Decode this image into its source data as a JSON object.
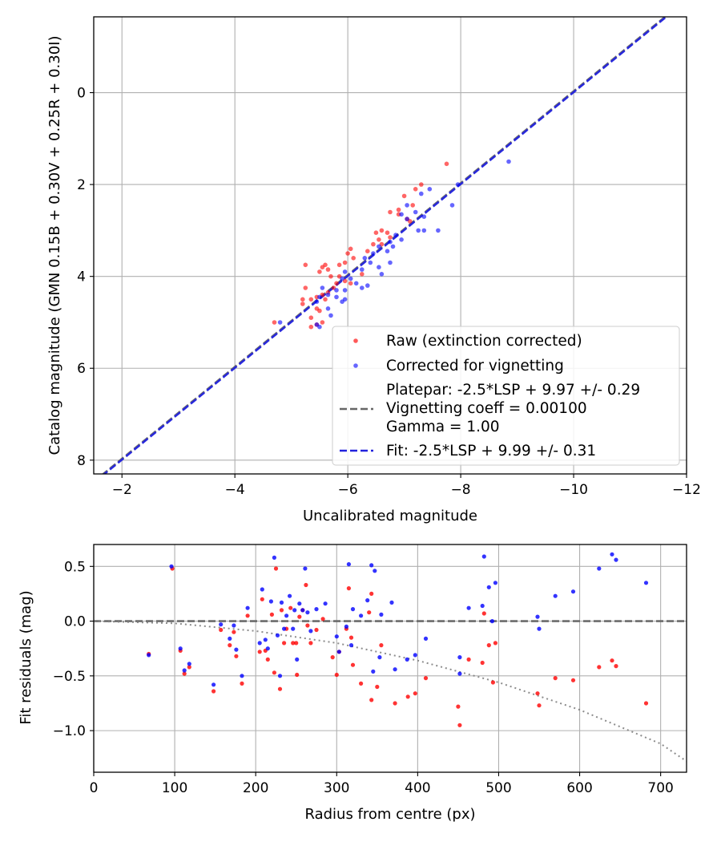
{
  "colors": {
    "raw": "#ff0000",
    "corrected": "#0000ff",
    "fit": "#2222dd",
    "platepar": "#666666",
    "grid": "#b0b0b0",
    "vignetting_curve": "#808080"
  },
  "chart_data": [
    {
      "type": "scatter",
      "xlabel": "Uncalibrated magnitude",
      "ylabel": "Catalog magnitude (GMN 0.15B + 0.30V + 0.25R + 0.30I)",
      "xlim": [
        -1.5,
        -12.0
      ],
      "ylim": [
        8.3,
        -1.65
      ],
      "x_inverted": true,
      "y_inverted": true,
      "grid": true,
      "xticks": [
        -2,
        -4,
        -6,
        -8,
        -10,
        -12
      ],
      "xtick_labels": [
        "−2",
        "−4",
        "−6",
        "−8",
        "−10",
        "−12"
      ],
      "yticks": [
        0,
        2,
        4,
        6,
        8
      ],
      "ytick_labels": [
        "0",
        "2",
        "4",
        "6",
        "8"
      ],
      "legend_position": "lower-right",
      "legend": [
        {
          "label": "Raw (extinction corrected)",
          "marker": "dot",
          "color": "#ff0000"
        },
        {
          "label": "Corrected for vignetting",
          "marker": "dot",
          "color": "#0000ff"
        },
        {
          "label": "Platepar: -2.5*LSP + 9.97 +/- 0.29",
          "marker": "none"
        },
        {
          "label": "Vignetting coeff = 0.00100",
          "marker": "dashed-line",
          "color": "#666666"
        },
        {
          "label": "Gamma = 1.00",
          "marker": "none"
        },
        {
          "label": "Fit: -2.5*LSP + 9.99 +/- 0.31",
          "marker": "dashed-line",
          "color": "#2222dd"
        }
      ],
      "lines": [
        {
          "name": "Platepar: -2.5*LSP + 9.97 +/- 0.29",
          "style": "dashed",
          "color": "#666666",
          "x": [
            -1.5,
            -12.0
          ],
          "y": [
            8.47,
            -2.03
          ]
        },
        {
          "name": "Fit: -2.5*LSP + 9.99 +/- 0.31",
          "style": "dashed",
          "color": "#2222dd",
          "x": [
            -1.5,
            -12.0
          ],
          "y": [
            8.49,
            -2.01
          ]
        }
      ],
      "series": [
        {
          "name": "Raw (extinction corrected)",
          "color": "#ff0000",
          "points": [
            [
              -7.75,
              1.55
            ],
            [
              -7.2,
              2.1
            ],
            [
              -7.3,
              2.0
            ],
            [
              -7.0,
              2.25
            ],
            [
              -7.15,
              2.45
            ],
            [
              -6.9,
              2.55
            ],
            [
              -6.75,
              2.6
            ],
            [
              -7.05,
              2.75
            ],
            [
              -7.1,
              2.8
            ],
            [
              -6.6,
              3.0
            ],
            [
              -6.7,
              3.05
            ],
            [
              -6.5,
              3.05
            ],
            [
              -6.75,
              3.15
            ],
            [
              -6.55,
              3.2
            ],
            [
              -6.6,
              3.3
            ],
            [
              -6.45,
              3.3
            ],
            [
              -6.35,
              3.45
            ],
            [
              -6.05,
              3.4
            ],
            [
              -6.0,
              3.5
            ],
            [
              -6.1,
              3.6
            ],
            [
              -5.95,
              3.7
            ],
            [
              -5.85,
              3.75
            ],
            [
              -5.6,
              3.75
            ],
            [
              -5.55,
              3.8
            ],
            [
              -5.25,
              3.75
            ],
            [
              -5.65,
              3.85
            ],
            [
              -5.5,
              3.9
            ],
            [
              -5.7,
              4.0
            ],
            [
              -5.85,
              4.0
            ],
            [
              -5.95,
              4.1
            ],
            [
              -6.05,
              4.15
            ],
            [
              -5.8,
              4.15
            ],
            [
              -5.75,
              4.25
            ],
            [
              -5.25,
              4.25
            ],
            [
              -5.55,
              4.4
            ],
            [
              -5.45,
              4.45
            ],
            [
              -5.6,
              4.5
            ],
            [
              -5.35,
              4.5
            ],
            [
              -5.2,
              4.5
            ],
            [
              -5.2,
              4.6
            ],
            [
              -5.45,
              4.7
            ],
            [
              -5.5,
              4.75
            ],
            [
              -5.35,
              4.9
            ],
            [
              -5.55,
              5.0
            ],
            [
              -5.35,
              5.1
            ],
            [
              -5.45,
              5.05
            ],
            [
              -4.7,
              5.0
            ],
            [
              -5.65,
              4.35
            ],
            [
              -6.25,
              3.95
            ],
            [
              -6.9,
              2.65
            ]
          ]
        },
        {
          "name": "Corrected for vignetting",
          "color": "#0000ff",
          "points": [
            [
              -8.85,
              1.5
            ],
            [
              -7.45,
              2.1
            ],
            [
              -7.95,
              2.0
            ],
            [
              -7.3,
              2.2
            ],
            [
              -7.85,
              2.45
            ],
            [
              -7.05,
              2.45
            ],
            [
              -7.2,
              2.6
            ],
            [
              -7.35,
              2.7
            ],
            [
              -7.05,
              2.75
            ],
            [
              -6.95,
              2.65
            ],
            [
              -7.6,
              3.0
            ],
            [
              -7.35,
              3.0
            ],
            [
              -7.25,
              3.0
            ],
            [
              -6.85,
              3.1
            ],
            [
              -6.95,
              3.2
            ],
            [
              -6.75,
              3.25
            ],
            [
              -6.8,
              3.35
            ],
            [
              -6.55,
              3.35
            ],
            [
              -6.7,
              3.45
            ],
            [
              -6.45,
              3.5
            ],
            [
              -6.3,
              3.6
            ],
            [
              -6.75,
              3.7
            ],
            [
              -6.55,
              3.8
            ],
            [
              -6.25,
              3.85
            ],
            [
              -5.95,
              3.9
            ],
            [
              -6.05,
              4.05
            ],
            [
              -5.9,
              4.05
            ],
            [
              -6.15,
              4.15
            ],
            [
              -6.25,
              4.25
            ],
            [
              -5.95,
              4.3
            ],
            [
              -5.8,
              4.3
            ],
            [
              -5.55,
              4.25
            ],
            [
              -5.65,
              4.4
            ],
            [
              -5.5,
              4.45
            ],
            [
              -5.45,
              4.55
            ],
            [
              -5.9,
              4.55
            ],
            [
              -5.8,
              4.45
            ],
            [
              -5.65,
              4.7
            ],
            [
              -5.7,
              4.85
            ],
            [
              -5.45,
              5.05
            ],
            [
              -5.5,
              5.1
            ],
            [
              -4.8,
              5.0
            ],
            [
              -5.95,
              4.5
            ],
            [
              -6.4,
              3.7
            ],
            [
              -6.6,
              3.95
            ],
            [
              -6.35,
              4.2
            ]
          ]
        }
      ]
    },
    {
      "type": "scatter",
      "xlabel": "Radius from centre (px)",
      "ylabel": "Fit residuals (mag)",
      "xlim": [
        0,
        732
      ],
      "ylim": [
        -1.38,
        0.7
      ],
      "grid": true,
      "xticks": [
        0,
        100,
        200,
        300,
        400,
        500,
        600,
        700
      ],
      "xtick_labels": [
        "0",
        "100",
        "200",
        "300",
        "400",
        "500",
        "600",
        "700"
      ],
      "yticks": [
        0.5,
        0.0,
        -0.5,
        -1.0
      ],
      "ytick_labels": [
        "0.5",
        "0.0",
        "−0.5",
        "−1.0"
      ],
      "lines": [
        {
          "name": "zero",
          "style": "dashed",
          "color": "#666666",
          "x": [
            0,
            732
          ],
          "y": [
            0,
            0
          ]
        },
        {
          "name": "vignetting model",
          "style": "dotted",
          "color": "#808080",
          "x": [
            0,
            100,
            200,
            300,
            400,
            500,
            600,
            700,
            732
          ],
          "y": [
            0,
            -0.02,
            -0.09,
            -0.2,
            -0.36,
            -0.56,
            -0.81,
            -1.12,
            -1.28
          ]
        }
      ],
      "series": [
        {
          "name": "Raw (extinction corrected)",
          "color": "#ff0000",
          "points": [
            [
              68,
              -0.3
            ],
            [
              97,
              0.48
            ],
            [
              107,
              -0.27
            ],
            [
              112,
              -0.48
            ],
            [
              118,
              -0.42
            ],
            [
              148,
              -0.64
            ],
            [
              157,
              -0.08
            ],
            [
              168,
              -0.22
            ],
            [
              173,
              -0.1
            ],
            [
              176,
              -0.32
            ],
            [
              183,
              -0.57
            ],
            [
              190,
              0.05
            ],
            [
              205,
              -0.28
            ],
            [
              208,
              0.2
            ],
            [
              212,
              -0.27
            ],
            [
              215,
              -0.35
            ],
            [
              220,
              0.06
            ],
            [
              223,
              -0.47
            ],
            [
              225,
              0.48
            ],
            [
              230,
              -0.62
            ],
            [
              232,
              0.1
            ],
            [
              235,
              -0.2
            ],
            [
              238,
              -0.07
            ],
            [
              243,
              0.12
            ],
            [
              246,
              -0.2
            ],
            [
              250,
              -0.2
            ],
            [
              251,
              -0.49
            ],
            [
              254,
              0.04
            ],
            [
              258,
              0.1
            ],
            [
              262,
              0.33
            ],
            [
              264,
              -0.04
            ],
            [
              268,
              -0.2
            ],
            [
              275,
              -0.08
            ],
            [
              283,
              0.02
            ],
            [
              295,
              -0.33
            ],
            [
              300,
              -0.49
            ],
            [
              303,
              -0.28
            ],
            [
              312,
              -0.07
            ],
            [
              315,
              0.3
            ],
            [
              318,
              -0.15
            ],
            [
              320,
              -0.4
            ],
            [
              330,
              -0.57
            ],
            [
              340,
              0.08
            ],
            [
              343,
              0.25
            ],
            [
              343,
              -0.72
            ],
            [
              350,
              -0.6
            ],
            [
              355,
              -0.22
            ],
            [
              372,
              -0.75
            ],
            [
              388,
              -0.69
            ],
            [
              397,
              -0.66
            ],
            [
              410,
              -0.52
            ],
            [
              450,
              -0.78
            ],
            [
              452,
              -0.95
            ],
            [
              463,
              -0.35
            ],
            [
              480,
              -0.38
            ],
            [
              482,
              0.07
            ],
            [
              488,
              -0.22
            ],
            [
              493,
              -0.56
            ],
            [
              496,
              -0.2
            ],
            [
              548,
              -0.66
            ],
            [
              550,
              -0.77
            ],
            [
              570,
              -0.52
            ],
            [
              592,
              -0.54
            ],
            [
              624,
              -0.42
            ],
            [
              640,
              -0.36
            ],
            [
              645,
              -0.41
            ],
            [
              682,
              -0.75
            ]
          ]
        },
        {
          "name": "Corrected for vignetting",
          "color": "#0000ff",
          "points": [
            [
              68,
              -0.31
            ],
            [
              96,
              0.5
            ],
            [
              107,
              -0.25
            ],
            [
              112,
              -0.45
            ],
            [
              118,
              -0.39
            ],
            [
              148,
              -0.58
            ],
            [
              157,
              -0.03
            ],
            [
              168,
              -0.16
            ],
            [
              173,
              -0.04
            ],
            [
              176,
              -0.26
            ],
            [
              183,
              -0.5
            ],
            [
              190,
              0.12
            ],
            [
              205,
              -0.2
            ],
            [
              208,
              0.29
            ],
            [
              212,
              -0.17
            ],
            [
              215,
              -0.25
            ],
            [
              219,
              0.18
            ],
            [
              223,
              0.58
            ],
            [
              227,
              -0.13
            ],
            [
              230,
              -0.5
            ],
            [
              232,
              0.17
            ],
            [
              235,
              -0.07
            ],
            [
              238,
              0.05
            ],
            [
              242,
              0.23
            ],
            [
              246,
              -0.07
            ],
            [
              248,
              0.1
            ],
            [
              251,
              -0.35
            ],
            [
              254,
              0.16
            ],
            [
              258,
              0.1
            ],
            [
              261,
              0.48
            ],
            [
              264,
              0.08
            ],
            [
              268,
              -0.09
            ],
            [
              275,
              0.11
            ],
            [
              286,
              0.16
            ],
            [
              300,
              -0.14
            ],
            [
              303,
              -0.28
            ],
            [
              312,
              -0.05
            ],
            [
              315,
              0.52
            ],
            [
              318,
              -0.22
            ],
            [
              320,
              0.11
            ],
            [
              330,
              0.05
            ],
            [
              338,
              0.19
            ],
            [
              343,
              0.51
            ],
            [
              345,
              -0.46
            ],
            [
              347,
              0.46
            ],
            [
              353,
              -0.33
            ],
            [
              355,
              0.06
            ],
            [
              368,
              0.17
            ],
            [
              372,
              -0.44
            ],
            [
              387,
              -0.35
            ],
            [
              397,
              -0.31
            ],
            [
              410,
              -0.16
            ],
            [
              452,
              -0.48
            ],
            [
              452,
              -0.33
            ],
            [
              463,
              0.12
            ],
            [
              480,
              0.14
            ],
            [
              482,
              0.59
            ],
            [
              488,
              0.31
            ],
            [
              492,
              0.0
            ],
            [
              496,
              0.35
            ],
            [
              548,
              0.04
            ],
            [
              550,
              -0.07
            ],
            [
              570,
              0.23
            ],
            [
              592,
              0.27
            ],
            [
              624,
              0.48
            ],
            [
              640,
              0.61
            ],
            [
              645,
              0.56
            ],
            [
              682,
              0.35
            ]
          ]
        }
      ]
    }
  ]
}
